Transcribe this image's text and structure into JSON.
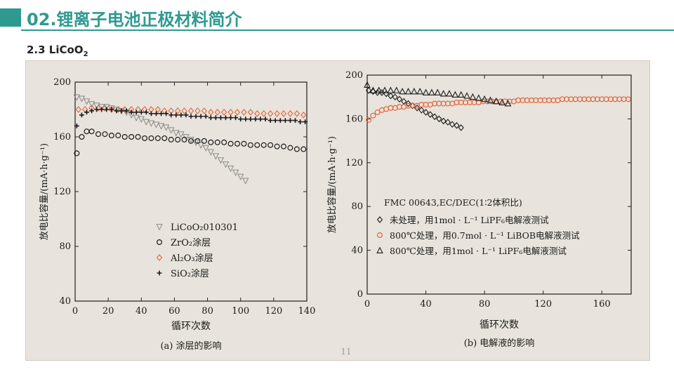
{
  "header": {
    "title": "02.锂离子电池正极材料简介",
    "section": "2.3 LiCoO",
    "section_sub": "2"
  },
  "page_number": "11",
  "colors": {
    "accent": "#2e9a8f",
    "orange": "#e0663a",
    "ink": "#1a1a1a"
  },
  "chart_data": [
    {
      "type": "scatter",
      "caption": "(a) 涂层的影响",
      "xlabel": "循环次数",
      "ylabel": "放电比容量/(mA·h·g⁻¹)",
      "xlim": [
        0,
        140
      ],
      "ylim": [
        40,
        200
      ],
      "xticks": [
        "0",
        "20",
        "40",
        "60",
        "80",
        "100",
        "120",
        "140"
      ],
      "yticks": [
        "40",
        "80",
        "120",
        "160",
        "200"
      ],
      "legend_position": "bottom-center",
      "series": [
        {
          "name": "LiCoO₂010301",
          "marker": "triangle-down",
          "color": "#8a8a8a",
          "x": [
            1,
            4,
            7,
            10,
            13,
            16,
            19,
            22,
            25,
            28,
            31,
            34,
            37,
            40,
            43,
            46,
            49,
            52,
            55,
            58,
            61,
            64,
            67,
            70,
            73,
            76,
            79,
            82,
            85,
            88,
            91,
            94,
            97,
            100,
            103
          ],
          "y": [
            189,
            188,
            186,
            184,
            183,
            182,
            182,
            181,
            180,
            179,
            178,
            176,
            174,
            173,
            171,
            170,
            169,
            168,
            167,
            165,
            163,
            162,
            160,
            158,
            156,
            154,
            152,
            149,
            146,
            143,
            140,
            137,
            134,
            131,
            128
          ]
        },
        {
          "name": "ZrO₂涂层",
          "marker": "circle",
          "color": "#1a1a1a",
          "x": [
            1,
            4,
            7,
            10,
            14,
            18,
            22,
            26,
            30,
            34,
            38,
            42,
            46,
            50,
            54,
            58,
            62,
            66,
            70,
            74,
            78,
            82,
            86,
            90,
            94,
            98,
            102,
            106,
            110,
            114,
            118,
            122,
            126,
            130,
            134,
            138
          ],
          "y": [
            148,
            160,
            164,
            164,
            162,
            162,
            161,
            161,
            160,
            160,
            160,
            159,
            159,
            159,
            159,
            158,
            158,
            158,
            157,
            157,
            157,
            156,
            156,
            156,
            155,
            155,
            155,
            154,
            154,
            154,
            154,
            153,
            153,
            152,
            151,
            151
          ]
        },
        {
          "name": "Al₂O₃涂层",
          "marker": "diamond",
          "color": "#e0663a",
          "x": [
            2,
            6,
            10,
            14,
            18,
            22,
            26,
            30,
            34,
            38,
            42,
            46,
            50,
            54,
            58,
            62,
            66,
            70,
            74,
            78,
            82,
            86,
            90,
            94,
            98,
            102,
            106,
            110,
            114,
            118,
            122,
            126,
            130,
            134,
            138
          ],
          "y": [
            180,
            180,
            181,
            181,
            181,
            180,
            180,
            180,
            180,
            180,
            180,
            180,
            180,
            179,
            179,
            179,
            179,
            179,
            179,
            179,
            178,
            178,
            178,
            178,
            178,
            178,
            178,
            177,
            177,
            177,
            177,
            177,
            177,
            177,
            176
          ]
        },
        {
          "name": "SiO₂涂层",
          "marker": "plus",
          "color": "#1a1a1a",
          "x": [
            1,
            4,
            7,
            10,
            13,
            16,
            19,
            22,
            25,
            28,
            31,
            34,
            37,
            40,
            43,
            46,
            49,
            52,
            55,
            58,
            61,
            64,
            67,
            70,
            73,
            76,
            79,
            82,
            85,
            88,
            91,
            94,
            97,
            100,
            103,
            106,
            109,
            112,
            115,
            118,
            121,
            124,
            127,
            130,
            133,
            136,
            139
          ],
          "y": [
            168,
            176,
            178,
            179,
            180,
            180,
            180,
            180,
            179,
            179,
            179,
            178,
            178,
            178,
            178,
            177,
            177,
            177,
            177,
            176,
            176,
            176,
            176,
            175,
            175,
            175,
            175,
            174,
            174,
            174,
            174,
            174,
            174,
            173,
            173,
            173,
            173,
            173,
            173,
            172,
            172,
            172,
            172,
            172,
            172,
            171,
            171
          ]
        }
      ]
    },
    {
      "type": "scatter",
      "caption": "(b) 电解液的影响",
      "xlabel": "循环次数",
      "ylabel": "放电比容量/(mA·h·g⁻¹)",
      "xlim": [
        0,
        180
      ],
      "ylim": [
        0,
        200
      ],
      "xticks": [
        "0",
        "40",
        "80",
        "120",
        "160"
      ],
      "yticks": [
        "0",
        "40",
        "80",
        "120",
        "160",
        "200"
      ],
      "legend_title": "FMC 00643,EC/DEC(1∶2体积比)",
      "legend_position": "lower-left",
      "series": [
        {
          "name": "未处理，用1mol · L⁻¹ LiPF₆电解液测试",
          "marker": "diamond",
          "color": "#1a1a1a",
          "x": [
            1,
            4,
            7,
            10,
            13,
            16,
            19,
            22,
            25,
            28,
            31,
            34,
            37,
            40,
            43,
            46,
            49,
            52,
            55,
            58,
            61,
            64
          ],
          "y": [
            186,
            185,
            184,
            184,
            183,
            181,
            180,
            178,
            176,
            174,
            172,
            170,
            168,
            166,
            164,
            162,
            160,
            158,
            157,
            155,
            154,
            152
          ]
        },
        {
          "name": "800℃处理，用0.7mol · L⁻¹ LiBOB电解液测试",
          "marker": "circle",
          "color": "#e0663a",
          "x": [
            1,
            4,
            7,
            10,
            13,
            16,
            19,
            22,
            25,
            28,
            31,
            34,
            37,
            40,
            43,
            46,
            49,
            52,
            55,
            58,
            61,
            64,
            67,
            70,
            73,
            76,
            79,
            82,
            85,
            88,
            91,
            94,
            97,
            100,
            103,
            106,
            109,
            112,
            115,
            118,
            121,
            124,
            127,
            130,
            133,
            136,
            139,
            142,
            145,
            148,
            151,
            154,
            157,
            160,
            163,
            166,
            169,
            172,
            175,
            178
          ],
          "y": [
            159,
            163,
            166,
            168,
            169,
            170,
            170,
            171,
            171,
            172,
            172,
            172,
            173,
            173,
            173,
            174,
            174,
            174,
            174,
            174,
            175,
            175,
            175,
            175,
            175,
            175,
            176,
            176,
            176,
            176,
            176,
            176,
            176,
            176,
            177,
            177,
            177,
            177,
            177,
            177,
            177,
            177,
            177,
            177,
            178,
            178,
            178,
            178,
            178,
            178,
            178,
            178,
            178,
            178,
            178,
            178,
            178,
            178,
            178,
            178
          ]
        },
        {
          "name": "800℃处理，用1mol · L⁻¹ LiPF₆电解液测试",
          "marker": "triangle",
          "color": "#1a1a1a",
          "x": [
            0,
            4,
            8,
            12,
            16,
            20,
            24,
            28,
            32,
            36,
            40,
            44,
            48,
            52,
            56,
            60,
            64,
            68,
            72,
            76,
            80,
            84,
            88,
            92,
            96
          ],
          "y": [
            191,
            186,
            186,
            186,
            186,
            186,
            185,
            185,
            185,
            185,
            184,
            184,
            184,
            183,
            183,
            182,
            182,
            181,
            180,
            179,
            178,
            177,
            176,
            175,
            174
          ]
        }
      ]
    }
  ]
}
